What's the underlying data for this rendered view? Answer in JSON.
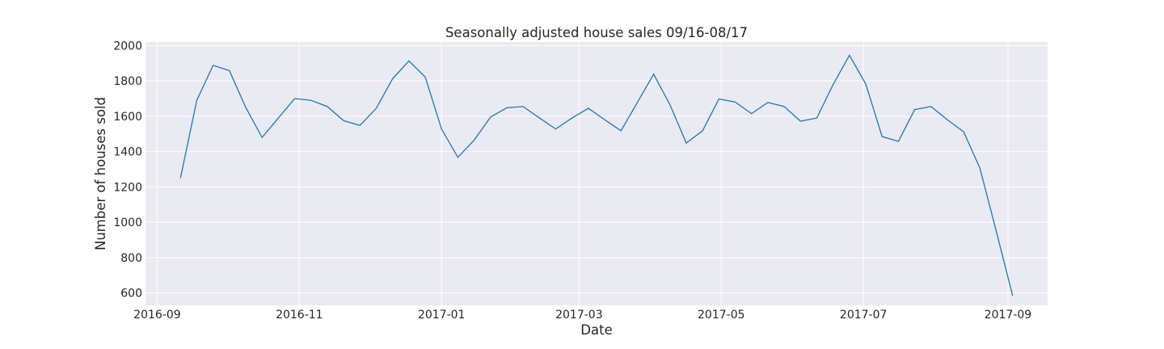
{
  "chart_data": {
    "type": "line",
    "title": "Seasonally adjusted house sales 09/16-08/17",
    "xlabel": "Date",
    "ylabel": "Number of houses sold",
    "xlim": [
      "2016-08-27",
      "2017-09-18"
    ],
    "ylim": [
      530,
      2020
    ],
    "x_ticks": [
      "2016-09-01",
      "2016-11-01",
      "2017-01-01",
      "2017-03-01",
      "2017-05-01",
      "2017-07-01",
      "2017-09-01"
    ],
    "x_tick_labels": [
      "2016-09",
      "2016-11",
      "2017-01",
      "2017-03",
      "2017-05",
      "2017-07",
      "2017-09"
    ],
    "y_ticks": [
      600,
      800,
      1000,
      1200,
      1400,
      1600,
      1800,
      2000
    ],
    "grid": true,
    "colors": {
      "plot_bg": "#eaeaf2",
      "line": "#1f77b4",
      "grid": "#ffffff"
    },
    "series": [
      {
        "x": [
          "2016-09-11",
          "2016-09-18",
          "2016-09-25",
          "2016-10-02",
          "2016-10-09",
          "2016-10-16",
          "2016-10-23",
          "2016-10-30",
          "2016-11-06",
          "2016-11-13",
          "2016-11-20",
          "2016-11-27",
          "2016-12-04",
          "2016-12-11",
          "2016-12-18",
          "2016-12-25",
          "2017-01-01",
          "2017-01-08",
          "2017-01-15",
          "2017-01-22",
          "2017-01-29",
          "2017-02-05",
          "2017-02-12",
          "2017-02-19",
          "2017-02-26",
          "2017-03-05",
          "2017-03-12",
          "2017-03-19",
          "2017-03-26",
          "2017-04-02",
          "2017-04-09",
          "2017-04-16",
          "2017-04-23",
          "2017-04-30",
          "2017-05-07",
          "2017-05-14",
          "2017-05-21",
          "2017-05-28",
          "2017-06-04",
          "2017-06-11",
          "2017-06-18",
          "2017-06-25",
          "2017-07-02",
          "2017-07-09",
          "2017-07-16",
          "2017-07-23",
          "2017-07-30",
          "2017-08-06",
          "2017-08-13",
          "2017-08-20",
          "2017-08-27",
          "2017-09-03"
        ],
        "values": [
          1250,
          1690,
          1888,
          1858,
          1650,
          1480,
          1590,
          1700,
          1690,
          1655,
          1575,
          1548,
          1645,
          1812,
          1913,
          1822,
          1528,
          1368,
          1465,
          1595,
          1648,
          1655,
          1590,
          1528,
          1590,
          1645,
          1580,
          1518,
          1678,
          1838,
          1665,
          1448,
          1518,
          1698,
          1680,
          1615,
          1678,
          1655,
          1572,
          1590,
          1780,
          1945,
          1782,
          1485,
          1458,
          1638,
          1655,
          1580,
          1512,
          1305,
          948,
          585
        ]
      }
    ]
  }
}
